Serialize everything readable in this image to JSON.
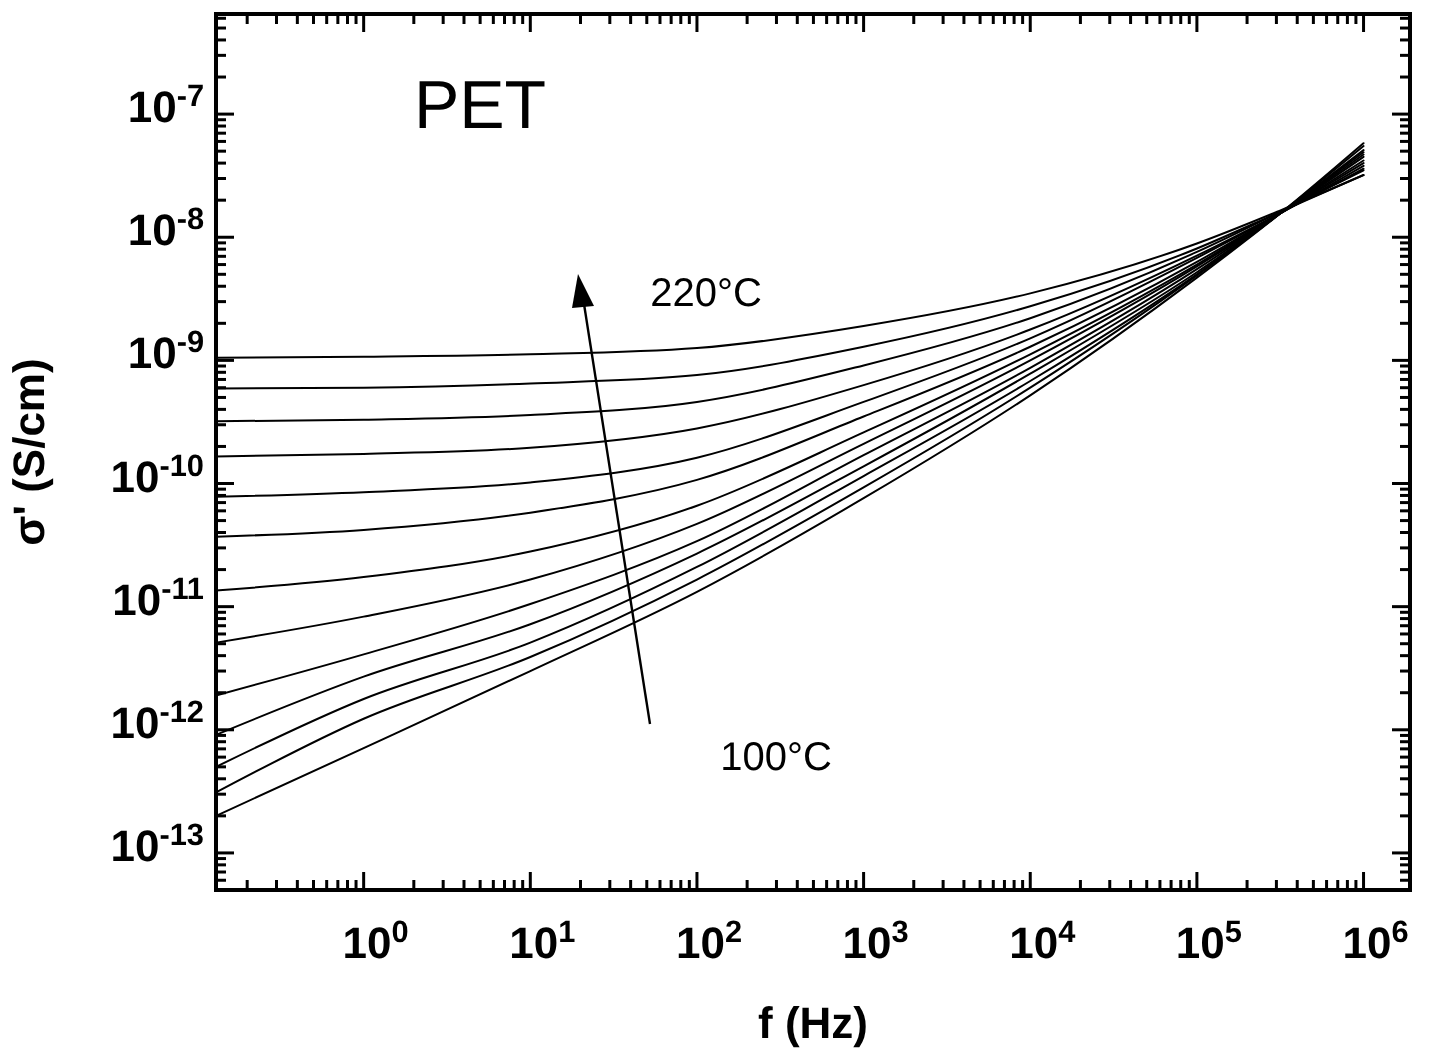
{
  "chart_data": {
    "type": "line",
    "xlabel": "f (Hz)",
    "ylabel": "σ' (S/cm)",
    "log": "xy",
    "annotations": [
      "PET",
      "220°C",
      "100°C"
    ],
    "xlim": [
      0.13,
      1900000
    ],
    "ylim": [
      5e-14,
      6.5e-07
    ],
    "xticks": [
      {
        "value": 0.2,
        "label": null
      },
      {
        "value": 0.3,
        "label": null
      },
      {
        "value": 0.4,
        "label": null
      },
      {
        "value": 0.5,
        "label": null
      },
      {
        "value": 0.6,
        "label": null
      },
      {
        "value": 0.7,
        "label": null
      },
      {
        "value": 0.8,
        "label": null
      },
      {
        "value": 0.9,
        "label": null
      },
      {
        "value": 1,
        "label": "10$^{0}$"
      },
      {
        "value": 2,
        "label": null
      },
      {
        "value": 3,
        "label": null
      },
      {
        "value": 4,
        "label": null
      },
      {
        "value": 5,
        "label": null
      },
      {
        "value": 6,
        "label": null
      },
      {
        "value": 7,
        "label": null
      },
      {
        "value": 8,
        "label": null
      },
      {
        "value": 9,
        "label": null
      },
      {
        "value": 10,
        "label": "10$^{1}$"
      },
      {
        "value": 20,
        "label": null
      },
      {
        "value": 30,
        "label": null
      },
      {
        "value": 40,
        "label": null
      },
      {
        "value": 50,
        "label": null
      },
      {
        "value": 60,
        "label": null
      },
      {
        "value": 70,
        "label": null
      },
      {
        "value": 80,
        "label": null
      },
      {
        "value": 90,
        "label": null
      },
      {
        "value": 100,
        "label": "10$^{2}$"
      },
      {
        "value": 200,
        "label": null
      },
      {
        "value": 300,
        "label": null
      },
      {
        "value": 400,
        "label": null
      },
      {
        "value": 500,
        "label": null
      },
      {
        "value": 600,
        "label": null
      },
      {
        "value": 700,
        "label": null
      },
      {
        "value": 800,
        "label": null
      },
      {
        "value": 900,
        "label": null
      },
      {
        "value": 1000,
        "label": "10$^{3}$"
      },
      {
        "value": 2000,
        "label": null
      },
      {
        "value": 3000,
        "label": null
      },
      {
        "value": 4000,
        "label": null
      },
      {
        "value": 5000,
        "label": null
      },
      {
        "value": 6000,
        "label": null
      },
      {
        "value": 7000,
        "label": null
      },
      {
        "value": 8000,
        "label": null
      },
      {
        "value": 9000,
        "label": null
      },
      {
        "value": 10000,
        "label": "10$^{4}$"
      },
      {
        "value": 20000,
        "label": null
      },
      {
        "value": 30000,
        "label": null
      },
      {
        "value": 40000,
        "label": null
      },
      {
        "value": 50000,
        "label": null
      },
      {
        "value": 60000,
        "label": null
      },
      {
        "value": 70000,
        "label": null
      },
      {
        "value": 80000,
        "label": null
      },
      {
        "value": 90000,
        "label": null
      },
      {
        "value": 100000,
        "label": "10$^{5}$"
      },
      {
        "value": 200000,
        "label": null
      },
      {
        "value": 300000,
        "label": null
      },
      {
        "value": 400000,
        "label": null
      },
      {
        "value": 500000,
        "label": null
      },
      {
        "value": 600000,
        "label": null
      },
      {
        "value": 700000,
        "label": null
      },
      {
        "value": 800000,
        "label": null
      },
      {
        "value": 900000,
        "label": null
      },
      {
        "value": 1000000,
        "label": "10$^{6}$"
      }
    ],
    "yticks": [
      {
        "value": 6e-14,
        "label": null
      },
      {
        "value": 7e-14,
        "label": null
      },
      {
        "value": 8e-14,
        "label": null
      },
      {
        "value": 9e-14,
        "label": null
      },
      {
        "value": 1e-13,
        "label": "10$^{-13}$"
      },
      {
        "value": 2e-13,
        "label": null
      },
      {
        "value": 3e-13,
        "label": null
      },
      {
        "value": 4e-13,
        "label": null
      },
      {
        "value": 5e-13,
        "label": null
      },
      {
        "value": 6e-13,
        "label": null
      },
      {
        "value": 7e-13,
        "label": null
      },
      {
        "value": 8e-13,
        "label": null
      },
      {
        "value": 9e-13,
        "label": null
      },
      {
        "value": 1e-12,
        "label": "10$^{-12}$"
      },
      {
        "value": 2e-12,
        "label": null
      },
      {
        "value": 3e-12,
        "label": null
      },
      {
        "value": 4e-12,
        "label": null
      },
      {
        "value": 5e-12,
        "label": null
      },
      {
        "value": 6e-12,
        "label": null
      },
      {
        "value": 7e-12,
        "label": null
      },
      {
        "value": 8e-12,
        "label": null
      },
      {
        "value": 9e-12,
        "label": null
      },
      {
        "value": 1e-11,
        "label": "10$^{-11}$"
      },
      {
        "value": 2e-11,
        "label": null
      },
      {
        "value": 3e-11,
        "label": null
      },
      {
        "value": 4e-11,
        "label": null
      },
      {
        "value": 5e-11,
        "label": null
      },
      {
        "value": 6e-11,
        "label": null
      },
      {
        "value": 7e-11,
        "label": null
      },
      {
        "value": 8e-11,
        "label": null
      },
      {
        "value": 9e-11,
        "label": null
      },
      {
        "value": 1e-10,
        "label": "10$^{-10}$"
      },
      {
        "value": 2e-10,
        "label": null
      },
      {
        "value": 3e-10,
        "label": null
      },
      {
        "value": 4e-10,
        "label": null
      },
      {
        "value": 5e-10,
        "label": null
      },
      {
        "value": 6e-10,
        "label": null
      },
      {
        "value": 7e-10,
        "label": null
      },
      {
        "value": 8e-10,
        "label": null
      },
      {
        "value": 9e-10,
        "label": null
      },
      {
        "value": 1e-09,
        "label": "10$^{-9}$"
      },
      {
        "value": 2e-09,
        "label": null
      },
      {
        "value": 3e-09,
        "label": null
      },
      {
        "value": 4e-09,
        "label": null
      },
      {
        "value": 5e-09,
        "label": null
      },
      {
        "value": 6e-09,
        "label": null
      },
      {
        "value": 7e-09,
        "label": null
      },
      {
        "value": 8e-09,
        "label": null
      },
      {
        "value": 9e-09,
        "label": null
      },
      {
        "value": 1e-08,
        "label": "10$^{-8}$"
      },
      {
        "value": 2e-08,
        "label": null
      },
      {
        "value": 3e-08,
        "label": null
      },
      {
        "value": 4e-08,
        "label": null
      },
      {
        "value": 5e-08,
        "label": null
      },
      {
        "value": 6e-08,
        "label": null
      },
      {
        "value": 7e-08,
        "label": null
      },
      {
        "value": 8e-08,
        "label": null
      },
      {
        "value": 9e-08,
        "label": null
      },
      {
        "value": 1e-07,
        "label": "10$^{-7}$"
      },
      {
        "value": 2e-07,
        "label": null
      },
      {
        "value": 3e-07,
        "label": null
      },
      {
        "value": 4e-07,
        "label": null
      },
      {
        "value": 5e-07,
        "label": null
      },
      {
        "value": 6e-07,
        "label": null
      }
    ],
    "x": [
      0.13,
      1,
      10,
      100,
      1000,
      10000,
      100000,
      320000,
      1000000
    ],
    "series": [
      {
        "color": "#000000",
        "values": [
          1.05e-09,
          1.07e-09,
          1.12e-09,
          1.26e-09,
          1.9e-09,
          3.5e-09,
          8.9e-09,
          1.66e-08,
          3.2e-08
        ]
      },
      {
        "color": "#000000",
        "values": [
          5.9e-10,
          6e-10,
          6.5e-10,
          7.6e-10,
          1.29e-09,
          2.75e-09,
          8.1e-09,
          1.62e-08,
          3.2e-08
        ]
      },
      {
        "color": "#000000",
        "values": [
          3.2e-10,
          3.3e-10,
          3.6e-10,
          4.6e-10,
          9.1e-10,
          2.2e-09,
          7.6e-09,
          1.62e-08,
          3.5e-08
        ]
      },
      {
        "color": "#000000",
        "values": [
          1.66e-10,
          1.74e-10,
          1.95e-10,
          2.8e-10,
          6.3e-10,
          1.78e-09,
          7.1e-09,
          1.58e-08,
          3.6e-08
        ]
      },
      {
        "color": "#000000",
        "values": [
          7.8e-11,
          8.5e-11,
          1.02e-10,
          1.62e-10,
          4.6e-10,
          1.51e-09,
          6.8e-09,
          1.58e-08,
          3.8e-08
        ]
      },
      {
        "color": "#000000",
        "values": [
          3.7e-11,
          4.2e-11,
          5.8e-11,
          1.07e-10,
          3.5e-10,
          1.29e-09,
          6.3e-09,
          1.58e-08,
          4e-08
        ]
      },
      {
        "color": "#000000",
        "values": [
          1.35e-11,
          1.74e-11,
          2.8e-11,
          6.6e-11,
          2.6e-10,
          1.12e-09,
          6e-09,
          1.58e-08,
          4.2e-08
        ]
      },
      {
        "color": "#000000",
        "values": [
          5.1e-12,
          8.3e-12,
          1.66e-11,
          4.7e-11,
          2.1e-10,
          1e-09,
          5.8e-09,
          1.58e-08,
          4.5e-08
        ]
      },
      {
        "color": "#000000",
        "values": [
          1.9e-12,
          4.1e-12,
          1.05e-11,
          3.4e-11,
          1.7e-10,
          8.7e-10,
          5.5e-09,
          1.58e-08,
          4.7e-08
        ]
      },
      {
        "color": "#000000",
        "values": [
          9.1e-13,
          2.7e-12,
          7.2e-12,
          2.7e-11,
          1.38e-10,
          7.8e-10,
          5.2e-09,
          1.58e-08,
          4.9e-08
        ]
      },
      {
        "color": "#000000",
        "values": [
          5e-13,
          1.78e-12,
          5.1e-12,
          2.1e-11,
          1.15e-10,
          6.8e-10,
          5e-09,
          1.58e-08,
          5.1e-08
        ]
      },
      {
        "color": "#000000",
        "values": [
          3.1e-13,
          1.23e-12,
          3.9e-12,
          1.66e-11,
          9.3e-11,
          6e-10,
          4.9e-09,
          1.58e-08,
          5.5e-08
        ]
      },
      {
        "color": "#000000",
        "values": [
          2e-13,
          7.1e-13,
          3e-12,
          1.32e-11,
          7.6e-11,
          5.2e-10,
          4.7e-09,
          1.58e-08,
          5.8e-08
        ]
      }
    ]
  }
}
